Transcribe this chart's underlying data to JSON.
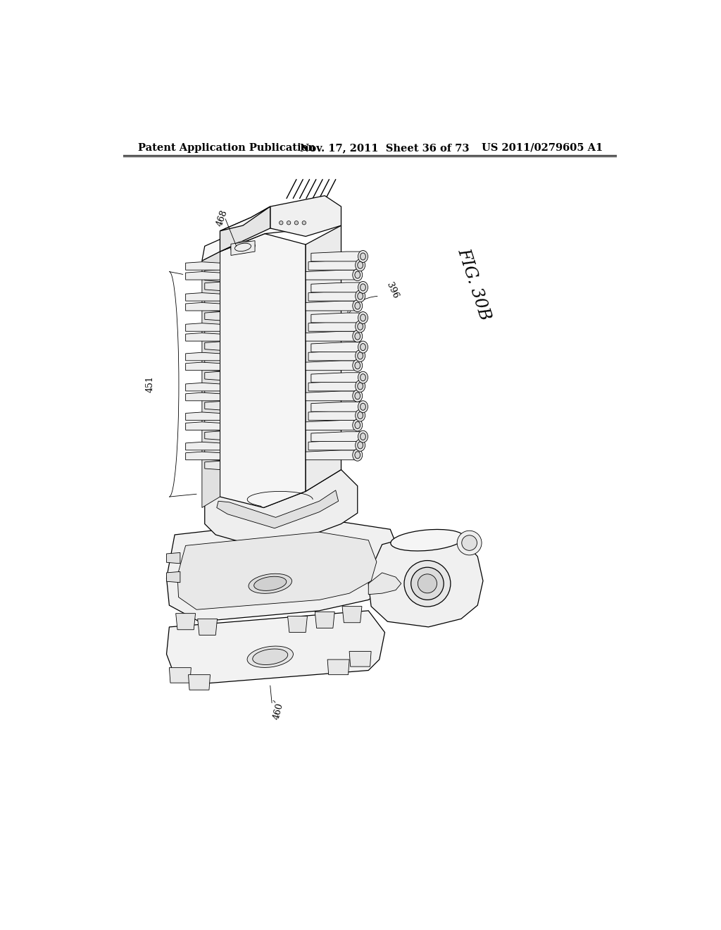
{
  "header_left": "Patent Application Publication",
  "header_mid": "Nov. 17, 2011  Sheet 36 of 73",
  "header_right": "US 2011/0279605 A1",
  "fig_label": "FIG. 30B",
  "ref_468": "468",
  "ref_396": "396",
  "ref_451": "451",
  "ref_460": "460",
  "bg_color": "#ffffff",
  "line_color": "#000000",
  "header_fontsize": 10.5,
  "fig_label_fontsize": 17,
  "ref_fontsize": 9
}
